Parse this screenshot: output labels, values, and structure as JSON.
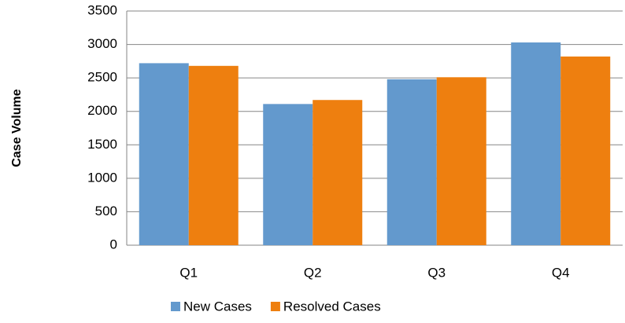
{
  "chart_data": {
    "type": "bar",
    "ylabel": "Case Volume",
    "categories": [
      "Q1",
      "Q2",
      "Q3",
      "Q4"
    ],
    "series": [
      {
        "name": "New Cases",
        "color": "#6399cd",
        "values": [
          2720,
          2110,
          2480,
          3030
        ]
      },
      {
        "name": "Resolved Cases",
        "color": "#ee7f0f",
        "values": [
          2680,
          2170,
          2510,
          2820
        ]
      }
    ],
    "ylim": [
      0,
      3500
    ],
    "yticks": [
      0,
      500,
      1000,
      1500,
      2000,
      2500,
      3000,
      3500
    ],
    "grid": true,
    "legend": "bottom"
  }
}
